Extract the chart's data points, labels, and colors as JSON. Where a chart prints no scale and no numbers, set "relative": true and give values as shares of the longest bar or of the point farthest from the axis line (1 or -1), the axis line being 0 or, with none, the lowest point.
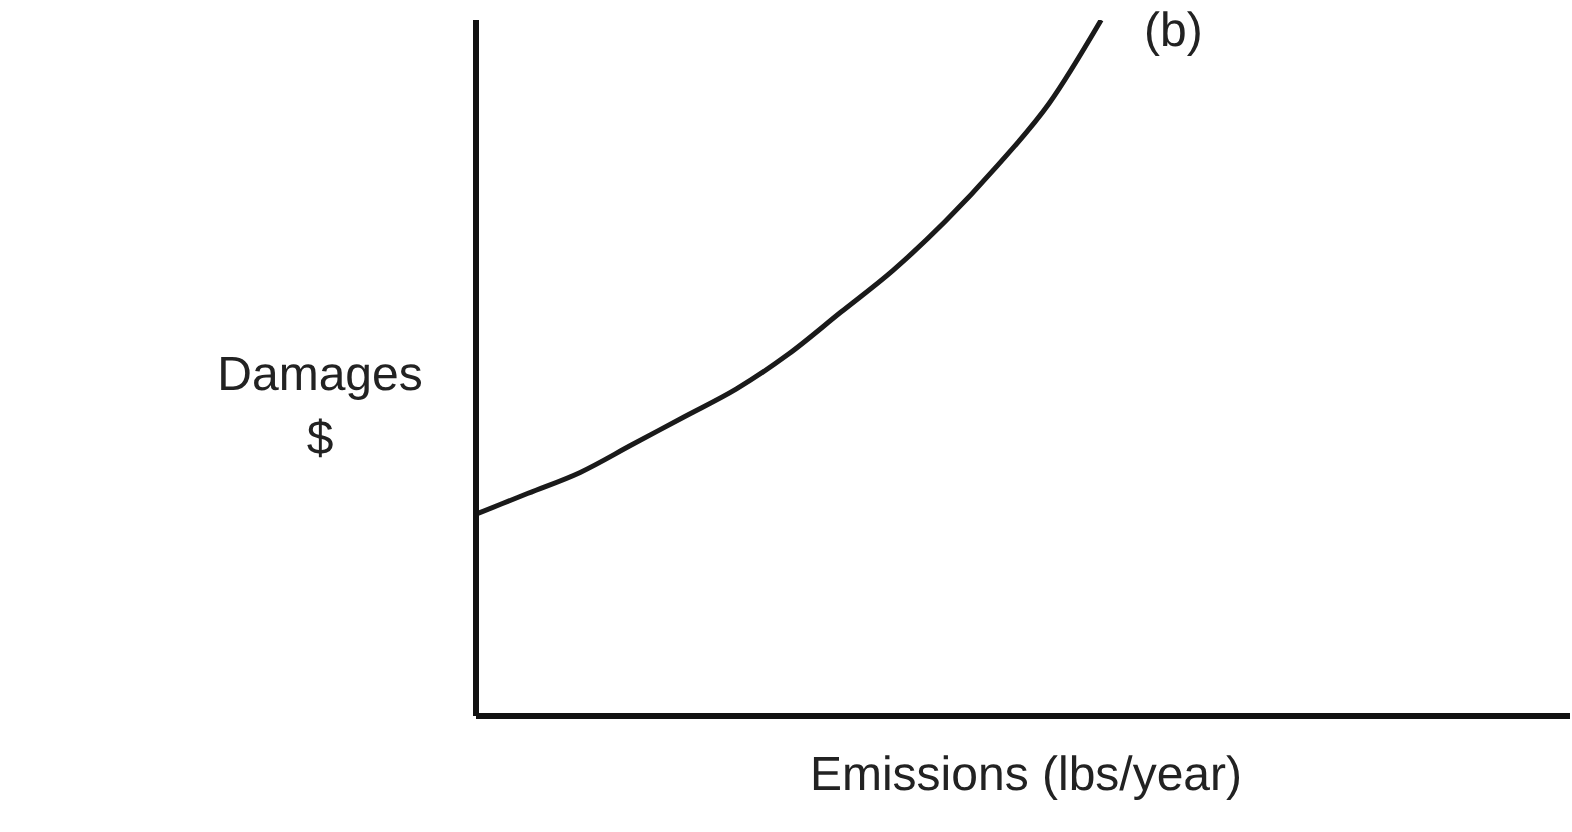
{
  "chart_data": {
    "type": "line",
    "relative": true,
    "xlabel": "Emissions (lbs/year)",
    "ylabel": "Damages\n$",
    "annotations": [
      "(b)"
    ],
    "categories": [
      null,
      null,
      null,
      null,
      null,
      null,
      null,
      null,
      null,
      null,
      null,
      null,
      null,
      null,
      null,
      null,
      null,
      null,
      null,
      null,
      null,
      null
    ],
    "series": [
      {
        "color": "#1a1a1a",
        "values": [
          0.29,
          0.32,
          0.35,
          0.39,
          0.43,
          0.47,
          0.52,
          0.58,
          0.64,
          0.71,
          0.79,
          0.88,
          1.0,
          null,
          null,
          null,
          null,
          null,
          null,
          null,
          null,
          null
        ]
      }
    ],
    "grid": false,
    "legend": false,
    "marker": "none",
    "line_style": "solid"
  }
}
